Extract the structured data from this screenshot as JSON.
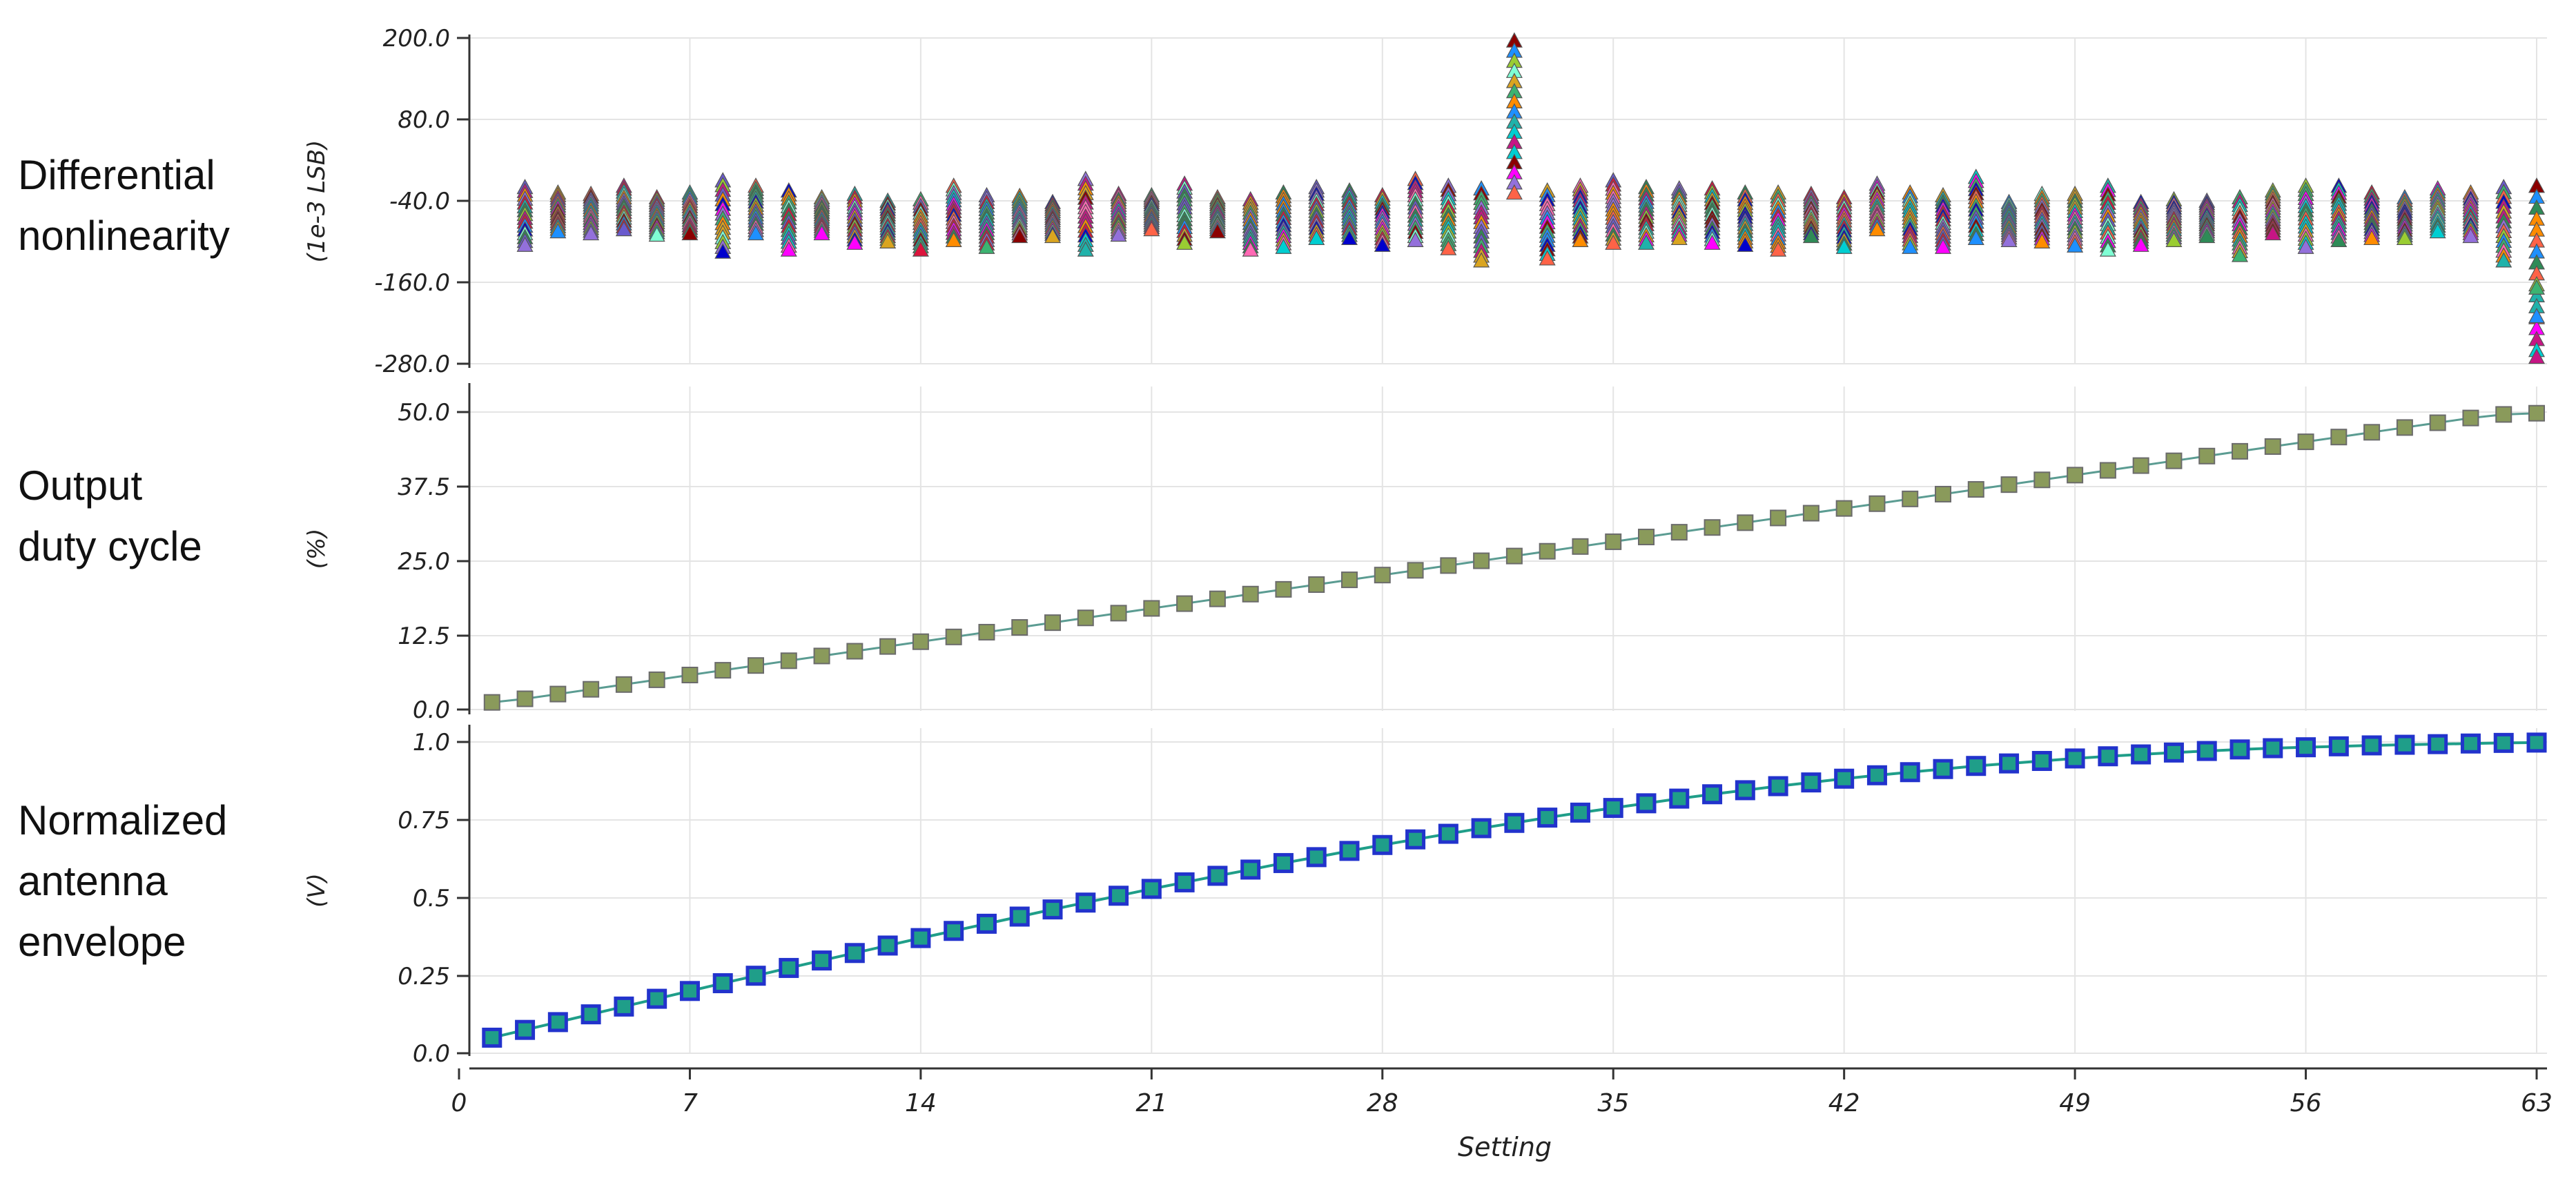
{
  "figure": {
    "row_labels": {
      "dnl": [
        "Differential",
        "nonlinearity"
      ],
      "duty": [
        "Output",
        "duty cycle"
      ],
      "envelope": [
        "Normalized",
        "antenna",
        "envelope"
      ]
    },
    "xlabel": "Setting",
    "x_tick_labels": [
      "0",
      "7",
      "14",
      "21",
      "28",
      "35",
      "42",
      "49",
      "56",
      "63"
    ]
  },
  "colors": {
    "dnl_markers": [
      "#3cb371",
      "#2e8b57",
      "#ff8c00",
      "#ff6347",
      "#9370db",
      "#1e90ff",
      "#ff69b4",
      "#dc143c",
      "#6a5acd",
      "#20b2aa",
      "#c71585",
      "#7fffd4",
      "#daa520",
      "#00ced1",
      "#0000cd",
      "#9acd32",
      "#ff00ff",
      "#8b0000"
    ],
    "duty_line": "#5b9c92",
    "duty_marker": "#8a9a5b",
    "env_line": "#1f9e89",
    "env_marker": "#2233cc"
  },
  "chart_data": [
    {
      "type": "scatter",
      "title": "",
      "ylabel": "(1e-3 LSB)",
      "xlim": [
        0,
        64
      ],
      "ylim": [
        -280,
        200
      ],
      "y_tick_labels": [
        "200.0",
        "80.0",
        "-40.0",
        "-160.0",
        "-280.0"
      ],
      "x": [
        2,
        3,
        4,
        5,
        6,
        7,
        8,
        9,
        10,
        11,
        12,
        13,
        14,
        15,
        16,
        17,
        18,
        19,
        20,
        21,
        22,
        23,
        24,
        25,
        26,
        27,
        28,
        29,
        30,
        31,
        32,
        33,
        34,
        35,
        36,
        37,
        38,
        39,
        40,
        41,
        42,
        43,
        44,
        45,
        46,
        47,
        48,
        49,
        50,
        51,
        52,
        53,
        54,
        55,
        56,
        57,
        58,
        59,
        60,
        61,
        62,
        63
      ],
      "y_max": [
        -20,
        -28,
        -30,
        -18,
        -35,
        -28,
        -10,
        -18,
        -25,
        -35,
        -30,
        -40,
        -38,
        -18,
        -32,
        -33,
        -42,
        -8,
        -30,
        -32,
        -15,
        -35,
        -38,
        -28,
        -20,
        -25,
        -32,
        -8,
        -18,
        -22,
        196,
        -25,
        -18,
        -10,
        -20,
        -22,
        -22,
        -28,
        -28,
        -30,
        -35,
        -15,
        -28,
        -32,
        -5,
        -42,
        -30,
        -30,
        -18,
        -42,
        -38,
        -40,
        -35,
        -25,
        -18,
        -18,
        -28,
        -35,
        -22,
        -28,
        -20,
        -18
      ],
      "y_min": [
        -105,
        -85,
        -88,
        -82,
        -90,
        -88,
        -115,
        -88,
        -112,
        -88,
        -102,
        -100,
        -112,
        -98,
        -108,
        -92,
        -92,
        -112,
        -90,
        -82,
        -102,
        -85,
        -112,
        -108,
        -95,
        -95,
        -105,
        -98,
        -110,
        -128,
        -28,
        -125,
        -98,
        -102,
        -102,
        -95,
        -102,
        -105,
        -112,
        -92,
        -108,
        -82,
        -108,
        -108,
        -95,
        -98,
        -100,
        -106,
        -112,
        -105,
        -98,
        -92,
        -120,
        -88,
        -108,
        -98,
        -95,
        -95,
        -85,
        -92,
        -128,
        -260
      ],
      "y_extra_low": [
        {
          "x": 63,
          "y": -168
        },
        {
          "x": 63,
          "y": -210
        },
        {
          "x": 63,
          "y": -270
        }
      ]
    },
    {
      "type": "line",
      "title": "",
      "ylabel": "(%)",
      "xlim": [
        0,
        64
      ],
      "ylim": [
        0,
        53.5
      ],
      "y_tick_labels": [
        "50.0",
        "37.5",
        "25.0",
        "12.5",
        "0.0"
      ],
      "x": [
        1,
        2,
        3,
        4,
        5,
        6,
        7,
        8,
        9,
        10,
        11,
        12,
        13,
        14,
        15,
        16,
        17,
        18,
        19,
        20,
        21,
        22,
        23,
        24,
        25,
        26,
        27,
        28,
        29,
        30,
        31,
        32,
        33,
        34,
        35,
        36,
        37,
        38,
        39,
        40,
        41,
        42,
        43,
        44,
        45,
        46,
        47,
        48,
        49,
        50,
        51,
        52,
        53,
        54,
        55,
        56,
        57,
        58,
        59,
        60,
        61,
        62,
        63
      ],
      "y": [
        1.2,
        1.8,
        2.6,
        3.4,
        4.2,
        5.0,
        5.8,
        6.6,
        7.4,
        8.2,
        9.0,
        9.8,
        10.6,
        11.4,
        12.2,
        13.0,
        13.8,
        14.6,
        15.4,
        16.2,
        17.0,
        17.8,
        18.6,
        19.4,
        20.2,
        21.0,
        21.8,
        22.6,
        23.4,
        24.2,
        25.0,
        25.8,
        26.6,
        27.4,
        28.2,
        29.0,
        29.8,
        30.6,
        31.4,
        32.2,
        33.0,
        33.8,
        34.6,
        35.4,
        36.2,
        37.0,
        37.8,
        38.6,
        39.4,
        40.2,
        41.0,
        41.8,
        42.6,
        43.4,
        44.2,
        45.0,
        45.8,
        46.6,
        47.4,
        48.2,
        49.0,
        49.6,
        49.8
      ]
    },
    {
      "type": "line",
      "title": "",
      "ylabel": "(V)",
      "xlim": [
        0,
        64
      ],
      "ylim": [
        0,
        1.05
      ],
      "y_tick_labels": [
        "1.0",
        "0.75",
        "0.5",
        "0.25",
        "0.0"
      ],
      "x": [
        1,
        2,
        3,
        4,
        5,
        6,
        7,
        8,
        9,
        10,
        11,
        12,
        13,
        14,
        15,
        16,
        17,
        18,
        19,
        20,
        21,
        22,
        23,
        24,
        25,
        26,
        27,
        28,
        29,
        30,
        31,
        32,
        33,
        34,
        35,
        36,
        37,
        38,
        39,
        40,
        41,
        42,
        43,
        44,
        45,
        46,
        47,
        48,
        49,
        50,
        51,
        52,
        53,
        54,
        55,
        56,
        57,
        58,
        59,
        60,
        61,
        62,
        63
      ],
      "y": [
        0.05,
        0.075,
        0.1,
        0.125,
        0.15,
        0.175,
        0.2,
        0.225,
        0.249,
        0.274,
        0.298,
        0.322,
        0.346,
        0.37,
        0.393,
        0.416,
        0.439,
        0.462,
        0.484,
        0.506,
        0.528,
        0.549,
        0.57,
        0.59,
        0.611,
        0.63,
        0.65,
        0.669,
        0.687,
        0.705,
        0.723,
        0.74,
        0.757,
        0.773,
        0.788,
        0.803,
        0.818,
        0.832,
        0.845,
        0.858,
        0.87,
        0.882,
        0.893,
        0.903,
        0.913,
        0.923,
        0.931,
        0.939,
        0.947,
        0.954,
        0.96,
        0.966,
        0.971,
        0.976,
        0.98,
        0.983,
        0.986,
        0.989,
        0.991,
        0.993,
        0.995,
        0.997,
        0.998
      ]
    }
  ]
}
